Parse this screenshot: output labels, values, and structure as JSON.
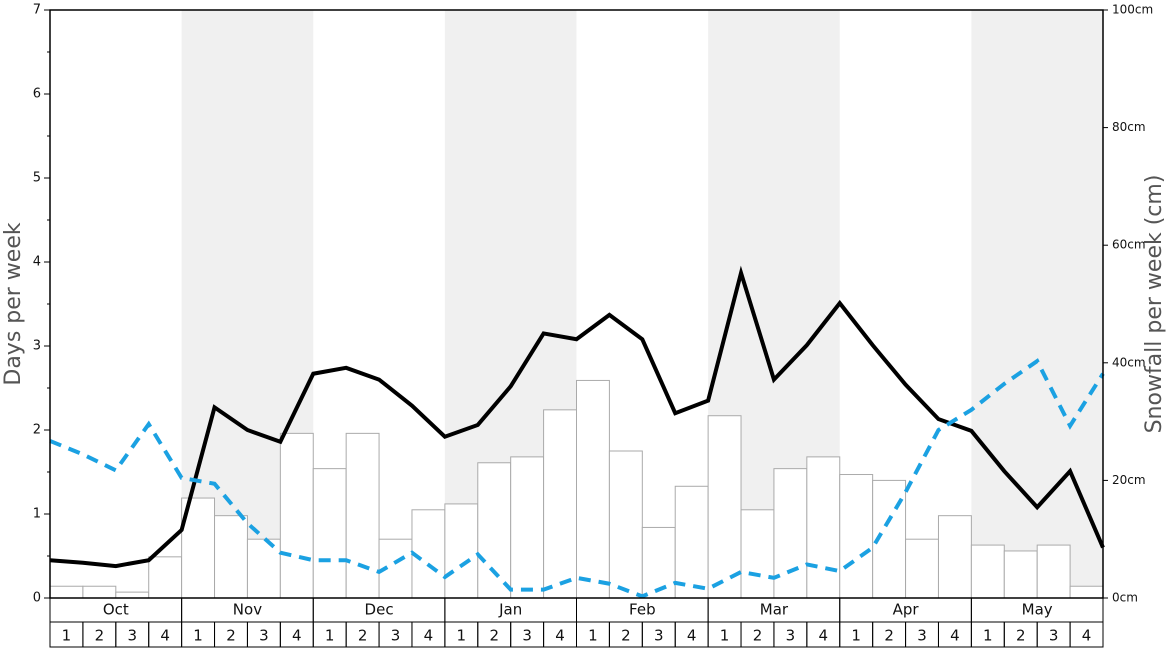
{
  "chart_data": {
    "type": "bar",
    "y_label": "Days per week",
    "y2_label": "Snowfall per week (cm)",
    "months": [
      "Oct",
      "Nov",
      "Dec",
      "Jan",
      "Feb",
      "Mar",
      "Apr",
      "May"
    ],
    "shaded_months": [
      false,
      true,
      false,
      true,
      false,
      true,
      false,
      true
    ],
    "shade_color": "#f0f0f0",
    "week_labels": [
      1,
      2,
      3,
      4,
      1,
      2,
      3,
      4,
      1,
      2,
      3,
      4,
      1,
      2,
      3,
      4,
      1,
      2,
      3,
      4,
      1,
      2,
      3,
      4,
      1,
      2,
      3,
      4,
      1,
      2,
      3,
      4
    ],
    "ylim": [
      0,
      7
    ],
    "yticks": [
      0,
      1,
      2,
      3,
      4,
      5,
      6,
      7
    ],
    "yminorticks": [
      0.5,
      1.5,
      2.5,
      3.5,
      4.5,
      5.5,
      6.5
    ],
    "y2lim": [
      0,
      100
    ],
    "y2ticks": [
      {
        "value": 0,
        "label": "0cm"
      },
      {
        "value": 20,
        "label": "20cm"
      },
      {
        "value": 40,
        "label": "40cm"
      },
      {
        "value": 60,
        "label": "60cm"
      },
      {
        "value": 80,
        "label": "80cm"
      },
      {
        "value": 100,
        "label": "100cm"
      }
    ],
    "bars": {
      "axis": "y2",
      "color": "#ffffff",
      "edge_color": "#aaaaaa",
      "values": [
        2,
        2,
        1,
        7,
        17,
        14,
        10,
        28,
        22,
        28,
        10,
        15,
        16,
        23,
        24,
        32,
        37,
        25,
        12,
        19,
        31,
        15,
        22,
        24,
        21,
        20,
        10,
        14,
        9,
        8,
        9,
        2
      ]
    },
    "series": [
      {
        "color": "#000000",
        "style": "solid",
        "axis": "y",
        "values": [
          0.45,
          0.42,
          0.38,
          0.45,
          0.81,
          2.27,
          2.0,
          1.86,
          2.67,
          2.74,
          2.6,
          2.29,
          1.92,
          2.06,
          2.52,
          3.15,
          3.08,
          3.37,
          3.08,
          2.2,
          2.35,
          3.87,
          2.6,
          3.01,
          3.51,
          3.01,
          2.54,
          2.13,
          1.99,
          1.51,
          1.08,
          1.51,
          0.6
        ]
      },
      {
        "color": "#1ba1e2",
        "style": "dashed",
        "axis": "y",
        "values": [
          1.87,
          1.71,
          1.52,
          2.07,
          1.43,
          1.36,
          0.89,
          0.54,
          0.45,
          0.45,
          0.31,
          0.54,
          0.25,
          0.52,
          0.1,
          0.1,
          0.24,
          0.17,
          0.02,
          0.18,
          0.11,
          0.31,
          0.24,
          0.4,
          0.32,
          0.6,
          1.26,
          2.0,
          2.24,
          2.55,
          2.82,
          2.05,
          2.67
        ]
      }
    ]
  }
}
